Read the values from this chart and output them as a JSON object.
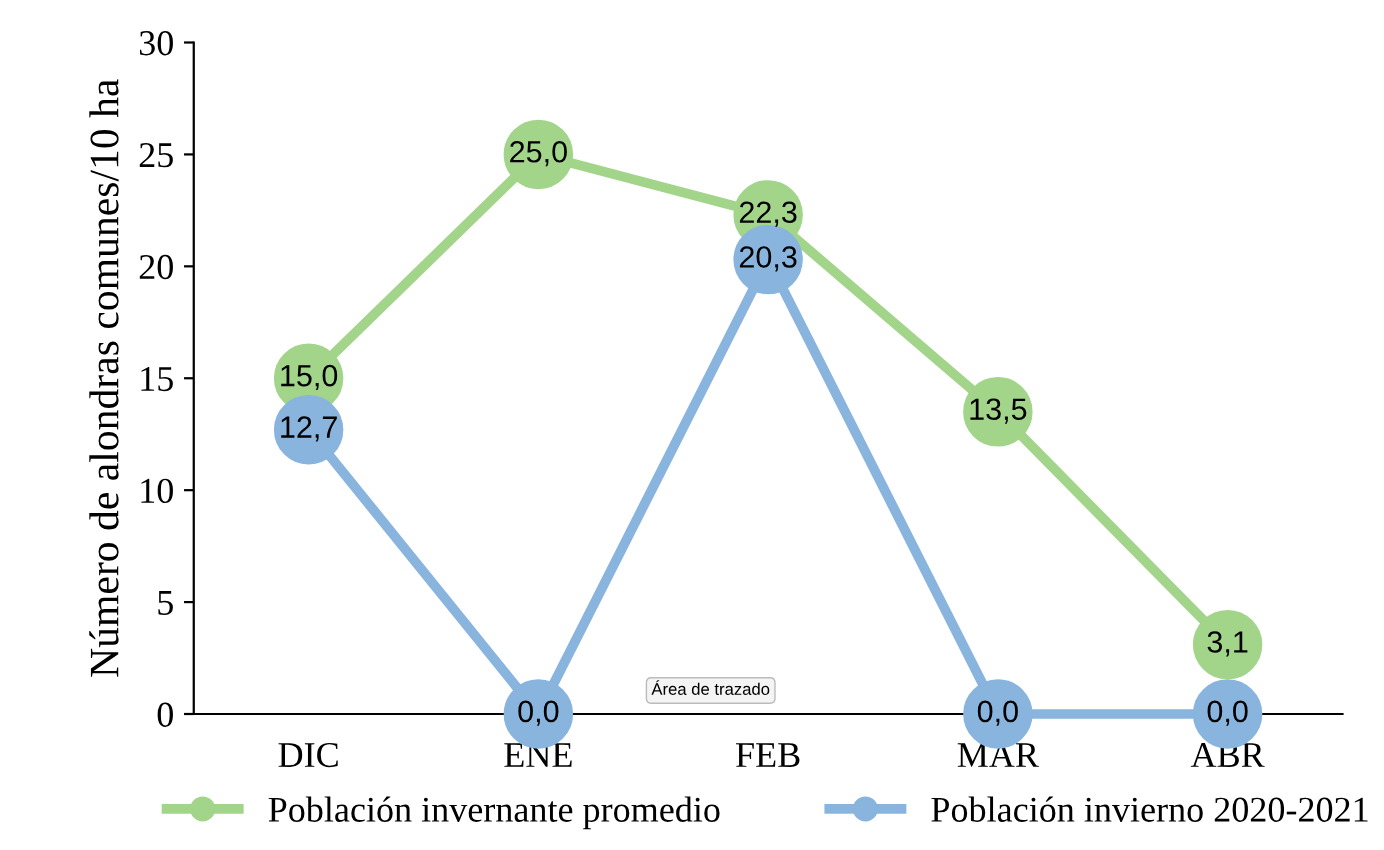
{
  "chart_data": {
    "type": "line",
    "ylabel": "Número de alondras comunes/10 ha",
    "categories": [
      "DIC",
      "ENE",
      "FEB",
      "MAR",
      "ABR"
    ],
    "series": [
      {
        "name": "Población invernante promedio",
        "color": "#a2d48a",
        "values": [
          15.0,
          25.0,
          22.3,
          13.5,
          3.1
        ],
        "value_labels": [
          "15,0",
          "25,0",
          "22,3",
          "13,5",
          "3,1"
        ]
      },
      {
        "name": "Población invierno 2020-2021",
        "color": "#88b4de",
        "values": [
          12.7,
          0.0,
          20.3,
          0.0,
          0.0
        ],
        "value_labels": [
          "12,7",
          "0,0",
          "20,3",
          "0,0",
          "0,0"
        ]
      }
    ],
    "ylim": [
      0,
      30
    ],
    "yticks": [
      0,
      5,
      10,
      15,
      20,
      25,
      30
    ],
    "marker": "circle",
    "line_style": "solid",
    "grid": false,
    "legend": "bottom",
    "annotations": [
      "Área de trazado"
    ]
  }
}
